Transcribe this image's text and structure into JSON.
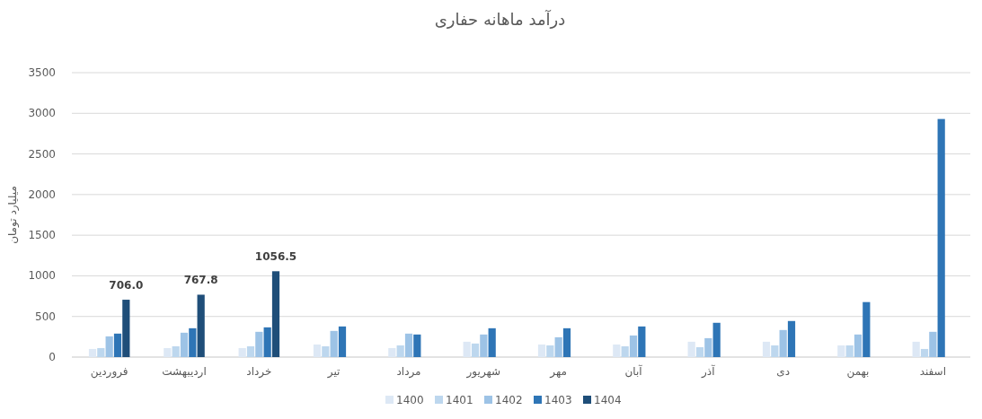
{
  "chart_data": {
    "type": "bar",
    "title": "درآمد ماهانه حفاری",
    "ylabel": "میلیارد تومان",
    "categories": [
      "فروردین",
      "اردیبهشت",
      "خرداد",
      "تیر",
      "مرداد",
      "شهریور",
      "مهر",
      "آبان",
      "آذر",
      "دی",
      "بهمن",
      "اسفند"
    ],
    "series": [
      {
        "name": "1400",
        "color": "#dde8f5",
        "values": [
          100,
          111,
          111,
          155,
          111,
          189,
          155,
          155,
          189,
          189,
          144,
          189
        ]
      },
      {
        "name": "1401",
        "color": "#bdd7ee",
        "values": [
          111,
          133,
          133,
          133,
          144,
          167,
          144,
          133,
          122,
          144,
          144,
          100
        ]
      },
      {
        "name": "1402",
        "color": "#9dc3e6",
        "values": [
          255,
          300,
          311,
          322,
          289,
          278,
          244,
          266,
          233,
          333,
          278,
          311
        ]
      },
      {
        "name": "1403",
        "color": "#2e75b6",
        "values": [
          289,
          355,
          366,
          377,
          278,
          355,
          355,
          377,
          422,
          444,
          677,
          2930
        ]
      },
      {
        "name": "1404",
        "color": "#1f4e79",
        "values": [
          706.0,
          767.8,
          1056.5,
          null,
          null,
          null,
          null,
          null,
          null,
          null,
          null,
          null
        ],
        "value_labels": [
          "706.0",
          "767.8",
          "1056.5",
          null,
          null,
          null,
          null,
          null,
          null,
          null,
          null,
          null
        ]
      }
    ],
    "ylim": [
      0,
      3500
    ],
    "yticks": [
      0,
      500,
      1000,
      1500,
      2000,
      2500,
      3000,
      3500
    ],
    "grid": "y",
    "legend": "bottom"
  }
}
